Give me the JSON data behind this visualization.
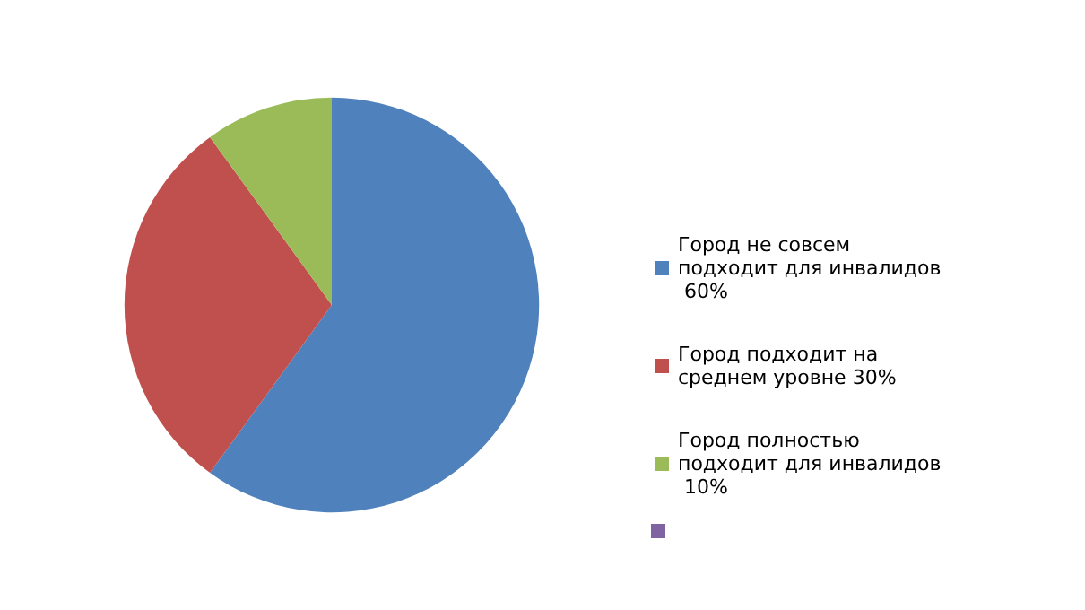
{
  "chart_data": {
    "type": "pie",
    "categories": [
      "Город не совсем подходит для инвалидов 60%",
      "Город подходит на среднем уровне 30%",
      "Город полностью подходит для инвалидов 10%"
    ],
    "values": [
      60,
      30,
      10
    ],
    "colors": [
      "#4f81bd",
      "#c0504d",
      "#9bbb59"
    ],
    "legend": "right"
  }
}
